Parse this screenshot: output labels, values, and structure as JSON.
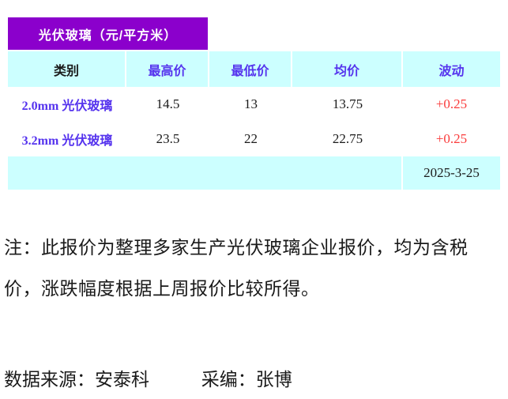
{
  "title": {
    "text": "光伏玻璃（元/平方米）"
  },
  "colors": {
    "title_background": "#8B00CC",
    "band_background": "#CCFFFF",
    "header_text_blue": "#5533EE",
    "change_red": "#FA3B3B",
    "text_black": "#1a1a1a"
  },
  "chart_data": {
    "type": "table",
    "title": "光伏玻璃（元/平方米）",
    "headers": [
      "类别",
      "最高价",
      "最低价",
      "均价",
      "波动"
    ],
    "rows": [
      {
        "category": "2.0mm 光伏玻璃",
        "high": "14.5",
        "low": "13",
        "avg": "13.75",
        "change": "+0.25"
      },
      {
        "category": "3.2mm 光伏玻璃",
        "high": "23.5",
        "low": "22",
        "avg": "22.75",
        "change": "+0.25"
      }
    ],
    "date": "2025-3-25"
  },
  "table": {
    "headers": [
      "类别",
      "最高价",
      "最低价",
      "均价",
      "波动"
    ],
    "rows": [
      {
        "category": "2.0mm 光伏玻璃",
        "high": "14.5",
        "low": "13",
        "avg": "13.75",
        "change": "+0.25"
      },
      {
        "category": "3.2mm 光伏玻璃",
        "high": "23.5",
        "low": "22",
        "avg": "22.75",
        "change": "+0.25"
      }
    ],
    "date": "2025-3-25"
  },
  "note": {
    "line1": "注：此报价为整理多家生产光伏玻璃企业报价，均为含税",
    "line2": "价，涨跌幅度根据上周报价比较所得。"
  },
  "source": {
    "data_source": "数据来源：安泰科",
    "editor": "采编：张博"
  }
}
